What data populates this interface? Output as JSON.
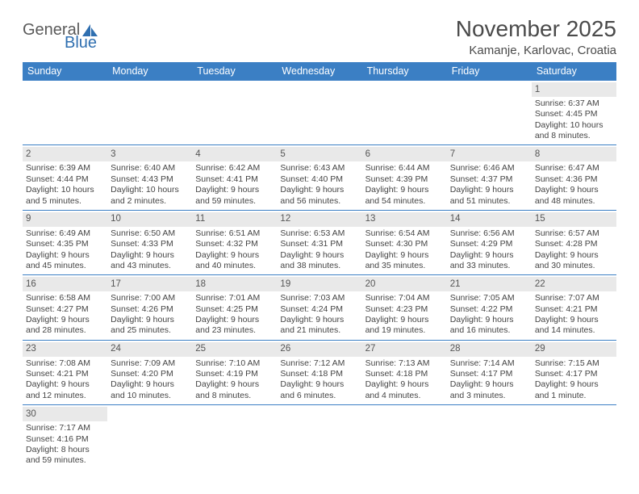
{
  "logo": {
    "text1": "General",
    "text2": "Blue"
  },
  "title": "November 2025",
  "location": "Kamanje, Karlovac, Croatia",
  "colors": {
    "header_bg": "#3b7fc4",
    "header_text": "#ffffff",
    "day_num_bg": "#e9e9e9",
    "row_divider": "#3b7fc4",
    "text": "#444444",
    "logo_blue": "#2f6fb0",
    "logo_gray": "#5a5a5a"
  },
  "dow": [
    "Sunday",
    "Monday",
    "Tuesday",
    "Wednesday",
    "Thursday",
    "Friday",
    "Saturday"
  ],
  "weeks": [
    [
      null,
      null,
      null,
      null,
      null,
      null,
      {
        "n": "1",
        "sr": "Sunrise: 6:37 AM",
        "ss": "Sunset: 4:45 PM",
        "d1": "Daylight: 10 hours",
        "d2": "and 8 minutes."
      }
    ],
    [
      {
        "n": "2",
        "sr": "Sunrise: 6:39 AM",
        "ss": "Sunset: 4:44 PM",
        "d1": "Daylight: 10 hours",
        "d2": "and 5 minutes."
      },
      {
        "n": "3",
        "sr": "Sunrise: 6:40 AM",
        "ss": "Sunset: 4:43 PM",
        "d1": "Daylight: 10 hours",
        "d2": "and 2 minutes."
      },
      {
        "n": "4",
        "sr": "Sunrise: 6:42 AM",
        "ss": "Sunset: 4:41 PM",
        "d1": "Daylight: 9 hours",
        "d2": "and 59 minutes."
      },
      {
        "n": "5",
        "sr": "Sunrise: 6:43 AM",
        "ss": "Sunset: 4:40 PM",
        "d1": "Daylight: 9 hours",
        "d2": "and 56 minutes."
      },
      {
        "n": "6",
        "sr": "Sunrise: 6:44 AM",
        "ss": "Sunset: 4:39 PM",
        "d1": "Daylight: 9 hours",
        "d2": "and 54 minutes."
      },
      {
        "n": "7",
        "sr": "Sunrise: 6:46 AM",
        "ss": "Sunset: 4:37 PM",
        "d1": "Daylight: 9 hours",
        "d2": "and 51 minutes."
      },
      {
        "n": "8",
        "sr": "Sunrise: 6:47 AM",
        "ss": "Sunset: 4:36 PM",
        "d1": "Daylight: 9 hours",
        "d2": "and 48 minutes."
      }
    ],
    [
      {
        "n": "9",
        "sr": "Sunrise: 6:49 AM",
        "ss": "Sunset: 4:35 PM",
        "d1": "Daylight: 9 hours",
        "d2": "and 45 minutes."
      },
      {
        "n": "10",
        "sr": "Sunrise: 6:50 AM",
        "ss": "Sunset: 4:33 PM",
        "d1": "Daylight: 9 hours",
        "d2": "and 43 minutes."
      },
      {
        "n": "11",
        "sr": "Sunrise: 6:51 AM",
        "ss": "Sunset: 4:32 PM",
        "d1": "Daylight: 9 hours",
        "d2": "and 40 minutes."
      },
      {
        "n": "12",
        "sr": "Sunrise: 6:53 AM",
        "ss": "Sunset: 4:31 PM",
        "d1": "Daylight: 9 hours",
        "d2": "and 38 minutes."
      },
      {
        "n": "13",
        "sr": "Sunrise: 6:54 AM",
        "ss": "Sunset: 4:30 PM",
        "d1": "Daylight: 9 hours",
        "d2": "and 35 minutes."
      },
      {
        "n": "14",
        "sr": "Sunrise: 6:56 AM",
        "ss": "Sunset: 4:29 PM",
        "d1": "Daylight: 9 hours",
        "d2": "and 33 minutes."
      },
      {
        "n": "15",
        "sr": "Sunrise: 6:57 AM",
        "ss": "Sunset: 4:28 PM",
        "d1": "Daylight: 9 hours",
        "d2": "and 30 minutes."
      }
    ],
    [
      {
        "n": "16",
        "sr": "Sunrise: 6:58 AM",
        "ss": "Sunset: 4:27 PM",
        "d1": "Daylight: 9 hours",
        "d2": "and 28 minutes."
      },
      {
        "n": "17",
        "sr": "Sunrise: 7:00 AM",
        "ss": "Sunset: 4:26 PM",
        "d1": "Daylight: 9 hours",
        "d2": "and 25 minutes."
      },
      {
        "n": "18",
        "sr": "Sunrise: 7:01 AM",
        "ss": "Sunset: 4:25 PM",
        "d1": "Daylight: 9 hours",
        "d2": "and 23 minutes."
      },
      {
        "n": "19",
        "sr": "Sunrise: 7:03 AM",
        "ss": "Sunset: 4:24 PM",
        "d1": "Daylight: 9 hours",
        "d2": "and 21 minutes."
      },
      {
        "n": "20",
        "sr": "Sunrise: 7:04 AM",
        "ss": "Sunset: 4:23 PM",
        "d1": "Daylight: 9 hours",
        "d2": "and 19 minutes."
      },
      {
        "n": "21",
        "sr": "Sunrise: 7:05 AM",
        "ss": "Sunset: 4:22 PM",
        "d1": "Daylight: 9 hours",
        "d2": "and 16 minutes."
      },
      {
        "n": "22",
        "sr": "Sunrise: 7:07 AM",
        "ss": "Sunset: 4:21 PM",
        "d1": "Daylight: 9 hours",
        "d2": "and 14 minutes."
      }
    ],
    [
      {
        "n": "23",
        "sr": "Sunrise: 7:08 AM",
        "ss": "Sunset: 4:21 PM",
        "d1": "Daylight: 9 hours",
        "d2": "and 12 minutes."
      },
      {
        "n": "24",
        "sr": "Sunrise: 7:09 AM",
        "ss": "Sunset: 4:20 PM",
        "d1": "Daylight: 9 hours",
        "d2": "and 10 minutes."
      },
      {
        "n": "25",
        "sr": "Sunrise: 7:10 AM",
        "ss": "Sunset: 4:19 PM",
        "d1": "Daylight: 9 hours",
        "d2": "and 8 minutes."
      },
      {
        "n": "26",
        "sr": "Sunrise: 7:12 AM",
        "ss": "Sunset: 4:18 PM",
        "d1": "Daylight: 9 hours",
        "d2": "and 6 minutes."
      },
      {
        "n": "27",
        "sr": "Sunrise: 7:13 AM",
        "ss": "Sunset: 4:18 PM",
        "d1": "Daylight: 9 hours",
        "d2": "and 4 minutes."
      },
      {
        "n": "28",
        "sr": "Sunrise: 7:14 AM",
        "ss": "Sunset: 4:17 PM",
        "d1": "Daylight: 9 hours",
        "d2": "and 3 minutes."
      },
      {
        "n": "29",
        "sr": "Sunrise: 7:15 AM",
        "ss": "Sunset: 4:17 PM",
        "d1": "Daylight: 9 hours",
        "d2": "and 1 minute."
      }
    ],
    [
      {
        "n": "30",
        "sr": "Sunrise: 7:17 AM",
        "ss": "Sunset: 4:16 PM",
        "d1": "Daylight: 8 hours",
        "d2": "and 59 minutes."
      },
      null,
      null,
      null,
      null,
      null,
      null
    ]
  ]
}
